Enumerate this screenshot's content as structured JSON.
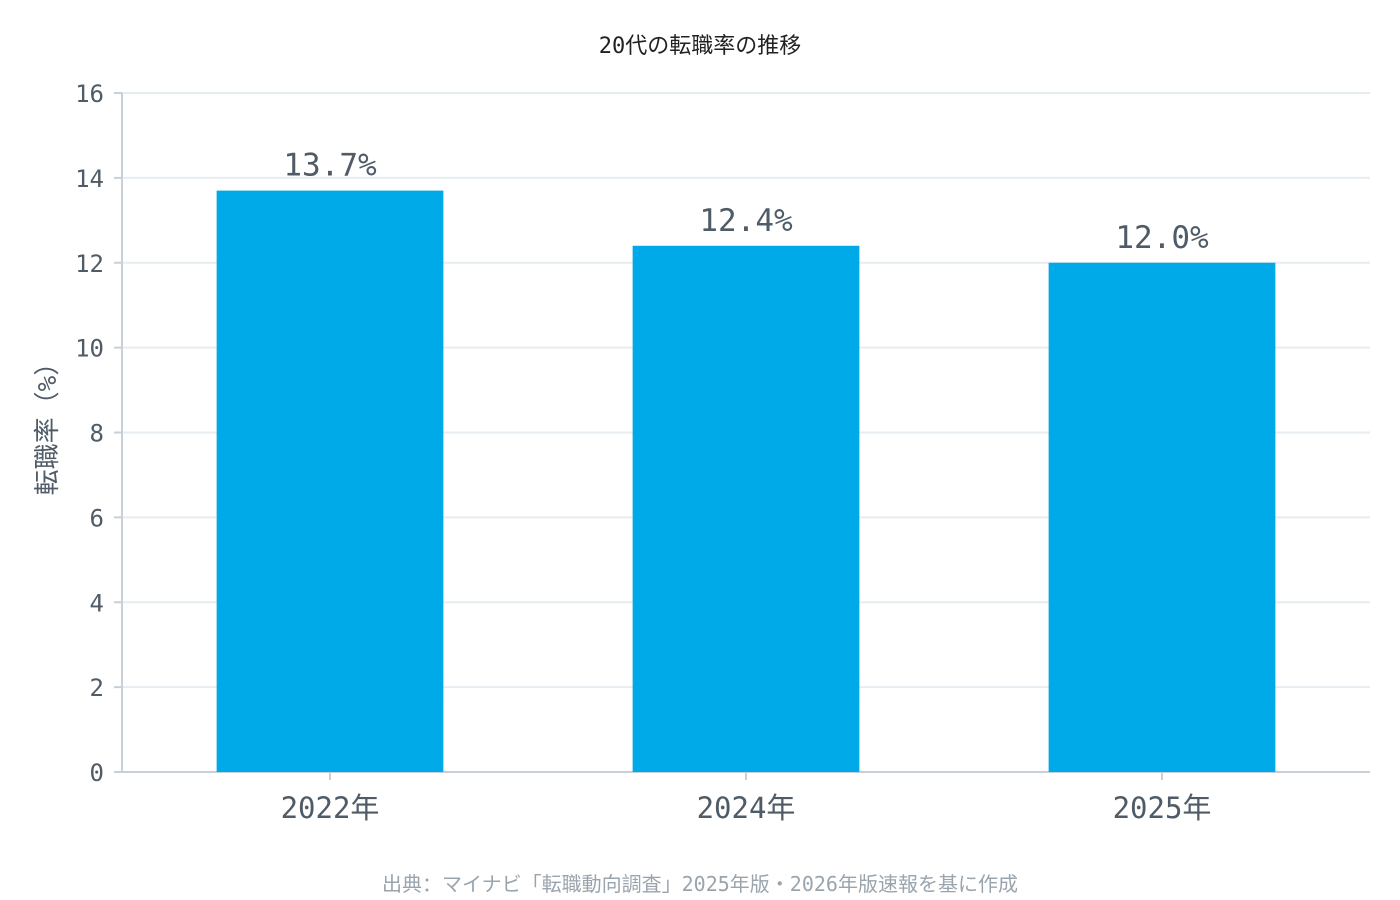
{
  "chart_data": {
    "type": "bar",
    "title": "20代の転職率の推移",
    "ylabel": "転職率（%）",
    "xlabel": "",
    "categories": [
      "2022年",
      "2024年",
      "2025年"
    ],
    "values": [
      13.7,
      12.4,
      12.0
    ],
    "data_labels": [
      "13.7%",
      "12.4%",
      "12.0%"
    ],
    "ylim": [
      0,
      16
    ],
    "yticks": [
      0,
      2,
      4,
      6,
      8,
      10,
      12,
      14,
      16
    ],
    "grid": true,
    "legend": "none",
    "source": "出典：マイナビ「転職動向調査」2025年版・2026年版速報を基に作成"
  },
  "colors": {
    "bar": "#00aae8",
    "data_label": "#0a86bf",
    "grid": "#e6edf1",
    "axis": "#c7d0d8",
    "tick_text": "#4f5b66",
    "title": "#222222",
    "source": "#9aa4ad"
  }
}
